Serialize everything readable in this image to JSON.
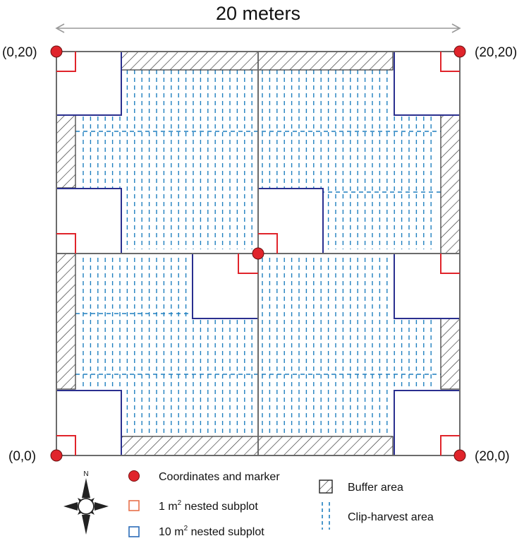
{
  "title": "20 meters",
  "corners": {
    "top_left": "(0,20)",
    "top_right": "(20,20)",
    "bottom_left": "(0,0)",
    "bottom_right": "(20,0)"
  },
  "compass": {
    "north_label": "N"
  },
  "legend": {
    "marker": "Coordinates and marker",
    "subplot_1m_value": "1 m",
    "subplot_1m_exp": "2",
    "subplot_1m_rest": " nested subplot",
    "subplot_10m_value": "10 m",
    "subplot_10m_exp": "2",
    "subplot_10m_rest": " nested subplot",
    "buffer": "Buffer area",
    "clip": "Clip-harvest area"
  },
  "colors": {
    "marker_fill": "#e0242b",
    "subplot_1m": "#e0242b",
    "subplot_10m": "#2a2f8f",
    "clip_dash": "#1f7fbf",
    "outline": "#6b6b6b",
    "buffer_hatch": "#333333"
  }
}
